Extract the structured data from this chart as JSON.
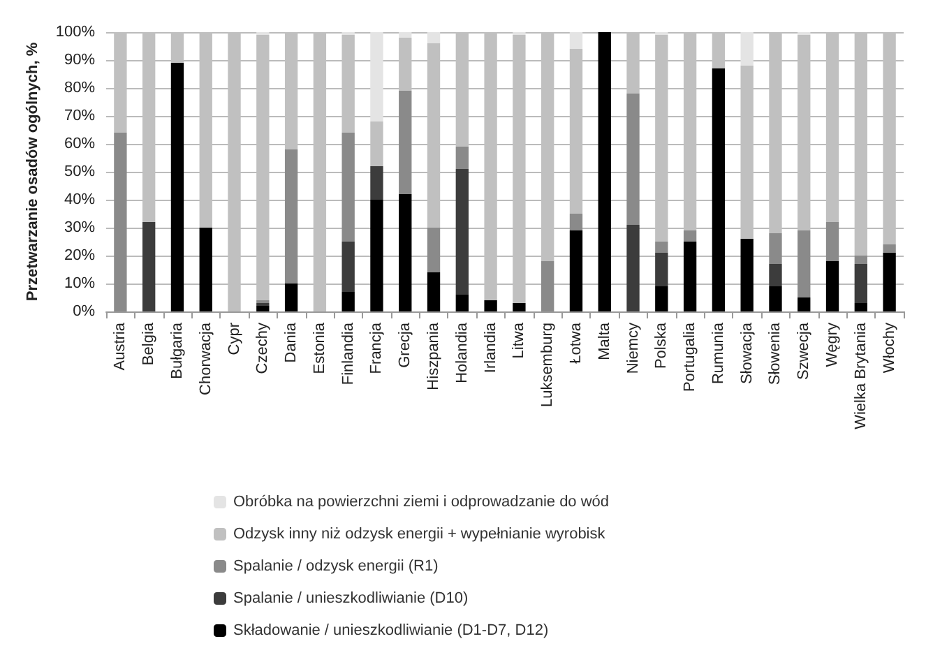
{
  "chart_data": {
    "type": "bar",
    "stacked": true,
    "ylabel": "Przetwarzanie osadów ogólnych, %",
    "categories": [
      "Austria",
      "Belgia",
      "Bułgaria",
      "Chorwacja",
      "Cypr",
      "Czechy",
      "Dania",
      "Estonia",
      "Finlandia",
      "Francja",
      "Grecja",
      "Hiszpania",
      "Holandia",
      "Irlandia",
      "Litwa",
      "Luksemburg",
      "Łotwa",
      "Malta",
      "Niemcy",
      "Polska",
      "Portugalia",
      "Rumunia",
      "Słowacja",
      "Słowenia",
      "Szwecja",
      "Węgry",
      "Wielka Brytania",
      "Włochy"
    ],
    "series": [
      {
        "name": "Składowanie / unieszkodliwianie (D1-D7, D12)",
        "color": "#000000",
        "values": [
          0,
          0,
          89,
          30,
          0,
          2,
          10,
          0,
          7,
          40,
          42,
          14,
          6,
          4,
          3,
          0,
          29,
          100,
          0,
          9,
          25,
          87,
          26,
          9,
          5,
          18,
          3,
          21
        ]
      },
      {
        "name": "Spalanie / unieszkodliwianie (D10)",
        "color": "#3c3c3c",
        "values": [
          0,
          32,
          0,
          0,
          0,
          1,
          0,
          0,
          18,
          12,
          0,
          0,
          45,
          0,
          0,
          0,
          0,
          0,
          31,
          12,
          0,
          0,
          0,
          8,
          0,
          0,
          14,
          0
        ]
      },
      {
        "name": "Spalanie / odzysk energii (R1)",
        "color": "#8a8a8a",
        "values": [
          64,
          0,
          0,
          0,
          0,
          1,
          48,
          0,
          39,
          0,
          37,
          16,
          8,
          0,
          0,
          18,
          6,
          0,
          47,
          4,
          4,
          0,
          0,
          11,
          24,
          14,
          3,
          3
        ]
      },
      {
        "name": "Odzysk inny niż odzysk energii + wypełnianie wyrobisk",
        "color": "#c0c0c0",
        "values": [
          36,
          68,
          11,
          70,
          100,
          95,
          42,
          100,
          35,
          16,
          19,
          66,
          41,
          96,
          96,
          82,
          59,
          0,
          22,
          74,
          71,
          13,
          62,
          72,
          70,
          68,
          80,
          76
        ]
      },
      {
        "name": "Obróbka na powierzchni ziemi i odprowadzanie do wód",
        "color": "#e4e4e4",
        "values": [
          0,
          0,
          0,
          0,
          0,
          1,
          0,
          0,
          1,
          32,
          2,
          4,
          0,
          0,
          1,
          0,
          6,
          0,
          0,
          1,
          0,
          0,
          12,
          0,
          1,
          0,
          0,
          0
        ]
      }
    ],
    "ylim": [
      0,
      100
    ],
    "yticks": [
      {
        "value": 0,
        "label": "0%"
      },
      {
        "value": 10,
        "label": "10%"
      },
      {
        "value": 20,
        "label": "20%"
      },
      {
        "value": 30,
        "label": "30%"
      },
      {
        "value": 40,
        "label": "40%"
      },
      {
        "value": 50,
        "label": "50%"
      },
      {
        "value": 60,
        "label": "60%"
      },
      {
        "value": 70,
        "label": "70%"
      },
      {
        "value": 80,
        "label": "80%"
      },
      {
        "value": 90,
        "label": "90%"
      },
      {
        "value": 100,
        "label": "100%"
      }
    ],
    "grid": "y",
    "legend": "bottom"
  }
}
